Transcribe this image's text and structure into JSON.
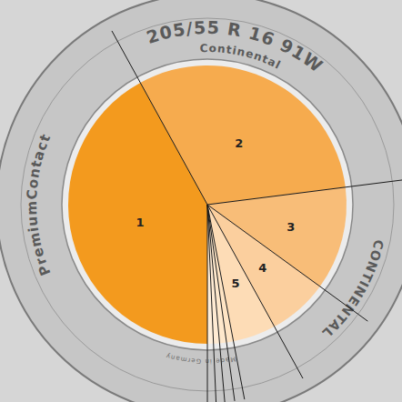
{
  "chart_data": {
    "type": "pie",
    "categories": [
      "1",
      "2",
      "3",
      "4",
      "5",
      null,
      null,
      null,
      null
    ],
    "values": [
      42,
      31,
      12,
      7,
      5,
      0.8,
      0.8,
      0.7,
      0.7
    ],
    "colors": [
      "#f39a1e",
      "#f6ab4e",
      "#f8bd78",
      "#fbcf9e",
      "#fddcb6",
      "#fee4c4",
      "#fee8cc",
      "#ffebd3",
      "#ffeed9"
    ],
    "data_labels": false
  },
  "tire_markings": [
    "205/55 R 16 91W",
    "Continental",
    "PremiumContact",
    "CONTINENTAL",
    "Made in Germany"
  ]
}
